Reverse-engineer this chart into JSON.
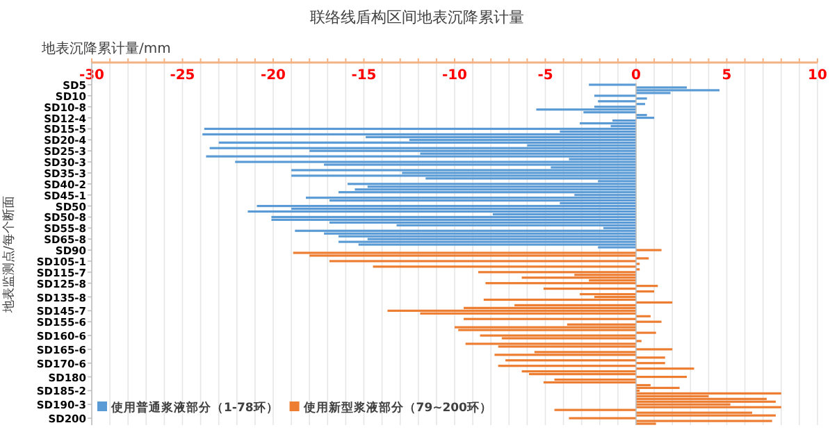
{
  "chart_data": {
    "type": "bar",
    "orientation": "horizontal",
    "title": "联络线盾构区间地表沉降累计量",
    "xlabel": "地表沉降累计量/mm",
    "ylabel": "地表监测点/每个断面",
    "categories": [
      "SD5",
      null,
      null,
      null,
      "SD10",
      null,
      null,
      null,
      "SD10-8",
      null,
      null,
      null,
      "SD12-4",
      null,
      null,
      null,
      "SD15-5",
      null,
      null,
      null,
      "SD20-4",
      null,
      null,
      null,
      "SD25-3",
      null,
      null,
      null,
      "SD30-3",
      null,
      null,
      null,
      "SD35-3",
      null,
      null,
      null,
      "SD40-2",
      null,
      null,
      null,
      "SD45-1",
      null,
      null,
      null,
      "SD50",
      null,
      null,
      null,
      "SD50-8",
      null,
      null,
      null,
      "SD55-8",
      null,
      null,
      null,
      "SD65-8",
      null,
      null,
      null,
      "SD90",
      null,
      null,
      null,
      "SD105-1",
      null,
      null,
      null,
      "SD115-7",
      null,
      null,
      null,
      "SD125-8",
      null,
      null,
      null,
      null,
      "SD135-8",
      null,
      null,
      null,
      null,
      "SD145-7",
      null,
      null,
      null,
      "SD155-6",
      null,
      null,
      null,
      null,
      "SD160-6",
      null,
      null,
      null,
      null,
      "SD165-6",
      null,
      null,
      null,
      null,
      "SD170-6",
      null,
      null,
      null,
      null,
      "SD180",
      null,
      null,
      null,
      null,
      "SD185-2",
      null,
      null,
      null,
      null,
      "SD190-3",
      null,
      null,
      null,
      null,
      "SD200",
      null,
      null
    ],
    "series": [
      {
        "name": "使用普通浆液部分（1-78环）",
        "color": "#5b9bd5",
        "values": [
          -2.6,
          2.8,
          4.6,
          1.9,
          -2.3,
          0.6,
          -2.1,
          0.5,
          -2.3,
          -5.5,
          -2.9,
          0.6,
          1.0,
          -1.3,
          -3.1,
          -1.4,
          -23.8,
          -4.2,
          -23.9,
          -14.9,
          -12.5,
          -23.0,
          -6.0,
          -23.5,
          -18.0,
          -11.9,
          -23.7,
          -3.7,
          -22.1,
          -17.2,
          -4.7,
          -19.0,
          -12.9,
          -19.0,
          -11.6,
          -2.1,
          -15.9,
          -14.8,
          -15.5,
          -16.4,
          -3.4,
          -18.2,
          -16.9,
          -4.2,
          -20.9,
          -19.0,
          -21.4,
          -7.9,
          -20.1,
          -20.1,
          -16.9,
          -13.2,
          -1.8,
          -18.8,
          -17.2,
          -16.4,
          -14.8,
          -16.4,
          -15.3,
          -2.1,
          null,
          null,
          null,
          null,
          null,
          null,
          null,
          null,
          null,
          null,
          null,
          null,
          null,
          null,
          null,
          null,
          null,
          null,
          null,
          null,
          null,
          null,
          null,
          null,
          null,
          null,
          null,
          null,
          null,
          null,
          null,
          null,
          null,
          null,
          null,
          null,
          null,
          null,
          null,
          null,
          null,
          null,
          null,
          null,
          null,
          null,
          null,
          null,
          null,
          null,
          null,
          null,
          null,
          null,
          null,
          null,
          null,
          null,
          null,
          null,
          null,
          null,
          null,
          null
        ]
      },
      {
        "name": "使用新型浆液部分（79~200环）",
        "color": "#ed7d31",
        "values": [
          null,
          null,
          null,
          null,
          null,
          null,
          null,
          null,
          null,
          null,
          null,
          null,
          null,
          null,
          null,
          null,
          null,
          null,
          null,
          null,
          null,
          null,
          null,
          null,
          null,
          null,
          null,
          null,
          null,
          null,
          null,
          null,
          null,
          null,
          null,
          null,
          null,
          null,
          null,
          null,
          null,
          null,
          null,
          null,
          null,
          null,
          null,
          null,
          null,
          null,
          null,
          null,
          null,
          null,
          null,
          null,
          null,
          null,
          null,
          null,
          1.4,
          -18.9,
          -18.0,
          0.7,
          -16.9,
          0.2,
          -14.5,
          0.2,
          -8.7,
          -3.4,
          -6.3,
          -2.6,
          -8.3,
          1.2,
          -5.1,
          1.0,
          -3.1,
          -2.3,
          -8.4,
          2.0,
          -6.7,
          -9.5,
          -13.7,
          -11.9,
          0.8,
          -9.5,
          1.4,
          -3.8,
          -10.0,
          -9.8,
          1.1,
          -8.6,
          -7.4,
          0.3,
          -9.4,
          -7.6,
          2.0,
          -5.6,
          -7.8,
          1.6,
          -7.2,
          1.6,
          -7.6,
          3.2,
          -6.3,
          -5.9,
          2.8,
          -4.5,
          -5.1,
          0.8,
          2.4,
          0.2,
          8.0,
          4.0,
          7.2,
          7.7,
          5.2,
          8.0,
          -4.5,
          6.4,
          7.7,
          -3.7,
          7.5,
          1.1
        ]
      }
    ],
    "xlim": [
      -30,
      10
    ],
    "xticks": [
      -30,
      {
        "value": -29,
        "label": null
      },
      {
        "value": -28,
        "label": null
      },
      {
        "value": -27,
        "label": null
      },
      {
        "value": -26,
        "label": null
      },
      -25,
      {
        "value": -24,
        "label": null
      },
      {
        "value": -23,
        "label": null
      },
      {
        "value": -22,
        "label": null
      },
      {
        "value": -21,
        "label": null
      },
      -20,
      {
        "value": -19,
        "label": null
      },
      {
        "value": -18,
        "label": null
      },
      {
        "value": -17,
        "label": null
      },
      {
        "value": -16,
        "label": null
      },
      -15,
      {
        "value": -14,
        "label": null
      },
      {
        "value": -13,
        "label": null
      },
      {
        "value": -12,
        "label": null
      },
      {
        "value": -11,
        "label": null
      },
      -10,
      {
        "value": -9,
        "label": null
      },
      {
        "value": -8,
        "label": null
      },
      {
        "value": -7,
        "label": null
      },
      {
        "value": -6,
        "label": null
      },
      -5,
      {
        "value": -4,
        "label": null
      },
      {
        "value": -3,
        "label": null
      },
      {
        "value": -2,
        "label": null
      },
      {
        "value": -1,
        "label": null
      },
      0,
      {
        "value": 1,
        "label": null
      },
      {
        "value": 2,
        "label": null
      },
      {
        "value": 3,
        "label": null
      },
      {
        "value": 4,
        "label": null
      },
      5,
      {
        "value": 6,
        "label": null
      },
      {
        "value": 7,
        "label": null
      },
      {
        "value": 8,
        "label": null
      },
      {
        "value": 9,
        "label": null
      },
      10
    ],
    "grid": "x",
    "legend": "bottom left"
  }
}
